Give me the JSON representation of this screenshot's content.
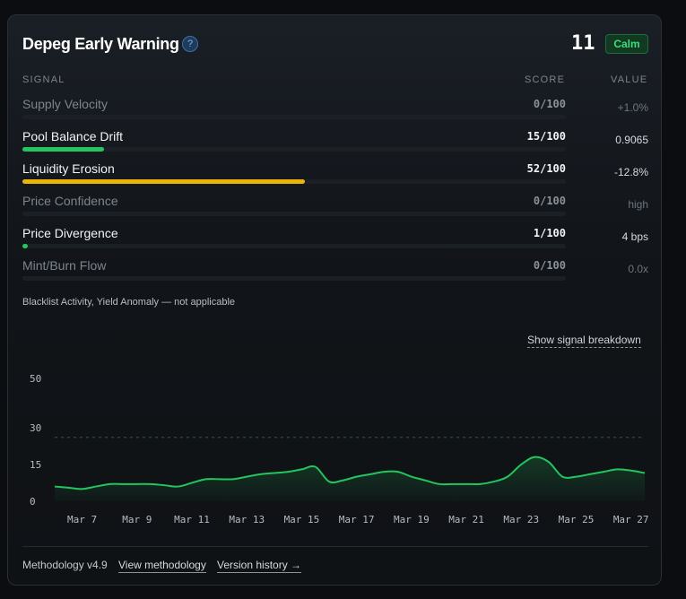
{
  "header": {
    "title": "Depeg Early Warning",
    "help_icon": "question-circle-icon",
    "score": "11",
    "status": "Calm",
    "status_color": "#3ddc7a"
  },
  "table": {
    "columns": [
      "SIGNAL",
      "SCORE",
      "VALUE"
    ],
    "rows": [
      {
        "name": "Supply Velocity",
        "score": "0/100",
        "score_value": 0,
        "value": "+1.0%",
        "active": false,
        "bar_color": "#22c55e"
      },
      {
        "name": "Pool Balance Drift",
        "score": "15/100",
        "score_value": 15,
        "value": "0.9065",
        "active": true,
        "bar_color": "#22c55e"
      },
      {
        "name": "Liquidity Erosion",
        "score": "52/100",
        "score_value": 52,
        "value": "-12.8%",
        "active": true,
        "bar_color": "#eab308"
      },
      {
        "name": "Price Confidence",
        "score": "0/100",
        "score_value": 0,
        "value": "high",
        "active": false,
        "bar_color": "#22c55e"
      },
      {
        "name": "Price Divergence",
        "score": "1/100",
        "score_value": 1,
        "value": "4 bps",
        "active": true,
        "bar_color": "#22c55e"
      },
      {
        "name": "Mint/Burn Flow",
        "score": "0/100",
        "score_value": 0,
        "value": "0.0x",
        "active": false,
        "bar_color": "#22c55e"
      }
    ],
    "not_applicable_note": "Blacklist Activity, Yield Anomaly — not applicable"
  },
  "breakdown_link": "Show signal breakdown",
  "chart_data": {
    "type": "area",
    "title": "",
    "xlabel": "",
    "ylabel": "",
    "ylim": [
      0,
      50
    ],
    "yticks": [
      "50",
      "30",
      "15",
      "0"
    ],
    "ytick_values": [
      50,
      30,
      15,
      0
    ],
    "xtick_labels": [
      "Mar 7",
      "Mar 9",
      "Mar 11",
      "Mar 13",
      "Mar 15",
      "Mar 17",
      "Mar 19",
      "Mar 21",
      "Mar 23",
      "Mar 25",
      "Mar 27"
    ],
    "xtick_positions": [
      7,
      9,
      11,
      13,
      15,
      17,
      19,
      21,
      23,
      25,
      27
    ],
    "threshold": 26,
    "line_color": "#22c55e",
    "x": [
      6,
      6.5,
      7,
      7.5,
      8,
      8.5,
      9,
      9.5,
      10,
      10.5,
      11,
      11.5,
      12,
      12.5,
      13,
      13.5,
      14,
      14.5,
      15,
      15.5,
      16,
      16.5,
      17,
      17.5,
      18,
      18.5,
      19,
      19.5,
      20,
      20.5,
      21,
      21.5,
      22,
      22.5,
      23,
      23.5,
      24,
      24.5,
      25,
      25.5,
      26,
      26.5,
      27,
      27.5
    ],
    "values": [
      6,
      5.5,
      5,
      6,
      7,
      7,
      7,
      7,
      6.5,
      6,
      7.5,
      9,
      9,
      9,
      10,
      11,
      11.5,
      12,
      13,
      14,
      8,
      8.5,
      10,
      11,
      12,
      12,
      10,
      8.5,
      7,
      7,
      7,
      7,
      8,
      10,
      15,
      18,
      16,
      10,
      10,
      11,
      12,
      13,
      12.5,
      11.5
    ]
  },
  "footer": {
    "methodology_version": "Methodology v4.9",
    "view_methodology": "View methodology",
    "version_history": "Version history →"
  }
}
